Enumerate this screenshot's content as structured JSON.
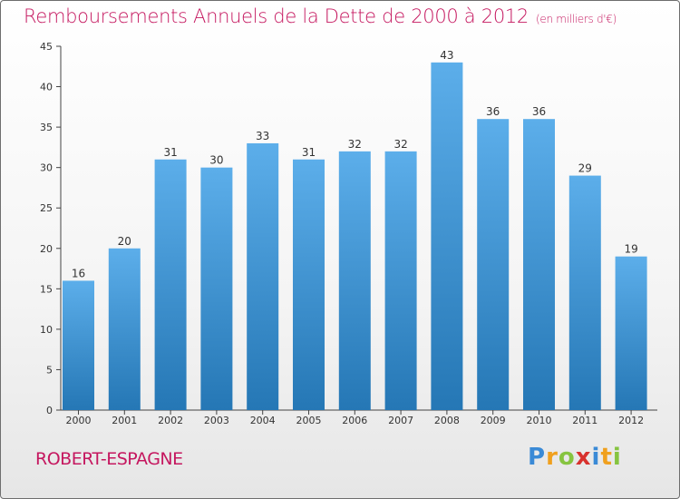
{
  "chart_data": {
    "type": "bar",
    "title": "Remboursements Annuels de la Dette de 2000 à 2012",
    "unit_note": "(en milliers d'€)",
    "categories": [
      "2000",
      "2001",
      "2002",
      "2003",
      "2004",
      "2005",
      "2006",
      "2007",
      "2008",
      "2009",
      "2010",
      "2011",
      "2012"
    ],
    "values": [
      16,
      20,
      31,
      30,
      33,
      31,
      32,
      32,
      43,
      36,
      36,
      29,
      19
    ],
    "ylim": [
      0,
      45
    ],
    "yticks": [
      0,
      5,
      10,
      15,
      20,
      25,
      30,
      35,
      40,
      45
    ],
    "xlabel": "",
    "ylabel": "",
    "grid": false,
    "bar_color_top": "#5caeea",
    "bar_color_bottom": "#2577b5",
    "title_color": "#c5175f"
  },
  "commune": "ROBERT-ESPAGNE",
  "brand": {
    "letters": [
      "P",
      "r",
      "o",
      "x",
      "i",
      "t",
      "i"
    ],
    "colors": [
      "#3a8ad6",
      "#f0a01e",
      "#86c440",
      "#d8322e",
      "#3a8ad6",
      "#f0a01e",
      "#86c440"
    ]
  }
}
